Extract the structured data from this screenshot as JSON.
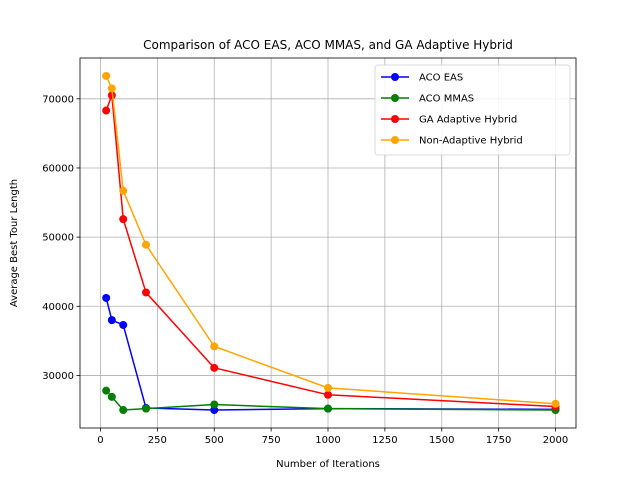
{
  "chart_data": {
    "type": "line",
    "title": "Comparison of ACO EAS, ACO MMAS, and GA Adaptive Hybrid",
    "xlabel": "Number of Iterations",
    "ylabel": "Average Best Tour Length",
    "xlim": [
      -90,
      2090
    ],
    "ylim": [
      22400,
      75900
    ],
    "x_ticks": [
      0,
      250,
      500,
      750,
      1000,
      1250,
      1500,
      1750,
      2000
    ],
    "x_tick_labels": [
      "0",
      "250",
      "500",
      "750",
      "1000",
      "1250",
      "1500",
      "1750",
      "2000"
    ],
    "y_ticks": [
      30000,
      40000,
      50000,
      60000,
      70000
    ],
    "y_tick_labels": [
      "30000",
      "40000",
      "50000",
      "60000",
      "70000"
    ],
    "grid": true,
    "legend_position": "top-right",
    "x": [
      25,
      50,
      100,
      200,
      500,
      1000,
      2000
    ],
    "series": [
      {
        "name": "ACO EAS",
        "color": "#0000ff",
        "values": [
          41200,
          38000,
          37300,
          25300,
          25000,
          25200,
          25100
        ]
      },
      {
        "name": "ACO MMAS",
        "color": "#008000",
        "values": [
          27800,
          26900,
          25000,
          25200,
          25800,
          25200,
          25000
        ]
      },
      {
        "name": "GA Adaptive Hybrid",
        "color": "#ff0000",
        "values": [
          68300,
          70500,
          52600,
          42000,
          31100,
          27200,
          25500
        ]
      },
      {
        "name": "Non-Adaptive Hybrid",
        "color": "#ffa500",
        "values": [
          73300,
          71500,
          56700,
          48900,
          34200,
          28200,
          25900
        ]
      }
    ]
  }
}
